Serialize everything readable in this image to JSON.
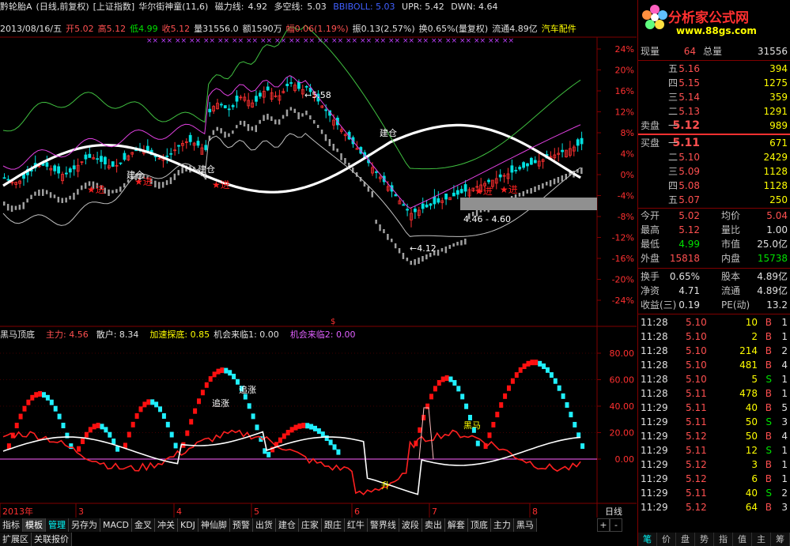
{
  "header": {
    "stock": "黔轮胎A",
    "mode": "(日线,前复权)",
    "index": "[上证指数]",
    "indicator": "华尔街神童(11,6)",
    "magnet_label": "磁力线:",
    "magnet_value": "4.92",
    "long_label": "多空线:",
    "long_value": "5.03",
    "bboll": "BBIBOLL: 5.03",
    "upr": "UPR: 5.42",
    "dwn": "DWN: 4.64"
  },
  "info_line": {
    "date": "2013/08/16/五",
    "open": "开5.02",
    "high": "高5.12",
    "low": "低4.99",
    "close": "收5.12",
    "vol": "量31556.0",
    "amount": "额1590万",
    "range": "幅0.06(1.19%)",
    "swing": "振0.13(2.57%)",
    "turnover": "换0.65%(量复权)",
    "float": "流通4.89亿",
    "sector": "汽车配件"
  },
  "main_chart": {
    "y_ticks": [
      "24%",
      "20%",
      "16%",
      "12%",
      "8%",
      "4%",
      "0%",
      "-4%",
      "-8%",
      "-12%",
      "-16%",
      "-20%",
      "-24%"
    ],
    "annotations": {
      "peak": "5.58",
      "low": "4.12",
      "range_box": "4.46 - 4.60",
      "jin1": "★进",
      "jin2": "★进",
      "jin3": "★进",
      "jin4": "★进",
      "jin5": "★进",
      "jiancang1": "建仓",
      "jiancang2": "建仓",
      "jiancang3": "建仓"
    }
  },
  "sub_chart": {
    "title": "黑马顶底",
    "main_force": "主力: 4.56",
    "retail": "散户: 8.34",
    "accel": "加速探底: 0.85",
    "chance1": "机会来临1: 0.00",
    "chance2": "机会来临2: 0.00",
    "y_ticks": [
      "80.00",
      "60.00",
      "40.00",
      "20.00",
      "0.00"
    ],
    "labels": {
      "zhuizhang1": "追涨",
      "zhuizhang2": "追涨",
      "heima": "黑马",
      "sheng": "升"
    }
  },
  "x_axis": {
    "labels": [
      "2013年",
      "3",
      "4",
      "5",
      "6",
      "7",
      "8"
    ],
    "period": "日线"
  },
  "bottom_tabs": [
    "指标",
    "模板",
    "管理",
    "另存为",
    "MACD",
    "金叉",
    "冲关",
    "KDJ",
    "神仙脚",
    "预警",
    "出货",
    "建仓",
    "庄家",
    "跟庄",
    "红牛",
    "警界线",
    "波段",
    "卖出",
    "解套",
    "顶底",
    "主力",
    "黑马"
  ],
  "bottom_tabs2": [
    "扩展区",
    "关联报价"
  ],
  "zoom": [
    "+",
    "-"
  ],
  "logo": {
    "text": "分析家公式网",
    "url": "www.88gs.com"
  },
  "quote": {
    "now_label": "现量",
    "now_value": "64",
    "total_label": "总量",
    "total_value": "31556",
    "sell_label": "卖盘",
    "buy_label": "买盘",
    "asks": [
      {
        "lvl": "五",
        "price": "5.16",
        "vol": "394"
      },
      {
        "lvl": "四",
        "price": "5.15",
        "vol": "1275"
      },
      {
        "lvl": "三",
        "price": "5.14",
        "vol": "359"
      },
      {
        "lvl": "二",
        "price": "5.13",
        "vol": "1291"
      },
      {
        "lvl": "一",
        "price": "5.12",
        "vol": "989"
      }
    ],
    "bids": [
      {
        "lvl": "一",
        "price": "5.11",
        "vol": "671"
      },
      {
        "lvl": "二",
        "price": "5.10",
        "vol": "2429"
      },
      {
        "lvl": "三",
        "price": "5.09",
        "vol": "1128"
      },
      {
        "lvl": "四",
        "price": "5.08",
        "vol": "1128"
      },
      {
        "lvl": "五",
        "price": "5.07",
        "vol": "250"
      }
    ],
    "stats": [
      {
        "l1": "今开",
        "v1": "5.02",
        "c1": "red",
        "l2": "均价",
        "v2": "5.04",
        "c2": "red"
      },
      {
        "l1": "最高",
        "v1": "5.12",
        "c1": "red",
        "l2": "量比",
        "v2": "1.00",
        "c2": "white"
      },
      {
        "l1": "最低",
        "v1": "4.99",
        "c1": "green",
        "l2": "市值",
        "v2": "25.0亿",
        "c2": "white"
      },
      {
        "l1": "外盘",
        "v1": "15818",
        "c1": "red",
        "l2": "内盘",
        "v2": "15738",
        "c2": "green"
      }
    ],
    "stats2": [
      {
        "l1": "换手",
        "v1": "0.65%",
        "l2": "股本",
        "v2": "4.89亿"
      },
      {
        "l1": "净资",
        "v1": "4.71",
        "l2": "流通",
        "v2": "4.89亿"
      },
      {
        "l1": "收益(三)",
        "v1": "0.19",
        "l2": "PE(动)",
        "v2": "13.2"
      }
    ],
    "ticks": [
      {
        "t": "11:28",
        "p": "5.10",
        "pc": "red",
        "v": "10",
        "d": "B",
        "n": "1"
      },
      {
        "t": "11:28",
        "p": "5.10",
        "pc": "red",
        "v": "2",
        "d": "B",
        "n": "1"
      },
      {
        "t": "11:28",
        "p": "5.10",
        "pc": "red",
        "v": "214",
        "d": "B",
        "n": "2"
      },
      {
        "t": "11:28",
        "p": "5.10",
        "pc": "red",
        "v": "481",
        "d": "B",
        "n": "4"
      },
      {
        "t": "11:28",
        "p": "5.10",
        "pc": "red",
        "v": "5",
        "d": "S",
        "n": "1"
      },
      {
        "t": "11:28",
        "p": "5.11",
        "pc": "red",
        "v": "478",
        "d": "B",
        "n": "1"
      },
      {
        "t": "11:29",
        "p": "5.11",
        "pc": "red",
        "v": "40",
        "d": "B",
        "n": "5"
      },
      {
        "t": "11:29",
        "p": "5.11",
        "pc": "red",
        "v": "50",
        "d": "S",
        "n": "3"
      },
      {
        "t": "11:29",
        "p": "5.12",
        "pc": "red",
        "v": "50",
        "d": "B",
        "n": "4"
      },
      {
        "t": "11:29",
        "p": "5.11",
        "pc": "red",
        "v": "12",
        "d": "S",
        "n": "1"
      },
      {
        "t": "11:29",
        "p": "5.12",
        "pc": "red",
        "v": "3",
        "d": "B",
        "n": "1"
      },
      {
        "t": "11:29",
        "p": "5.12",
        "pc": "red",
        "v": "6",
        "d": "B",
        "n": "1"
      },
      {
        "t": "11:29",
        "p": "5.11",
        "pc": "red",
        "v": "40",
        "d": "S",
        "n": "2"
      },
      {
        "t": "11:29",
        "p": "5.12",
        "pc": "red",
        "v": "64",
        "d": "B",
        "n": "3"
      }
    ],
    "tabs": [
      "笔",
      "价",
      "盘",
      "势",
      "指",
      "值",
      "主",
      "筹"
    ]
  },
  "colors": {
    "up": "#ff3030",
    "down": "#00e0e0",
    "grid": "#800000",
    "accent": "#ffff00"
  }
}
